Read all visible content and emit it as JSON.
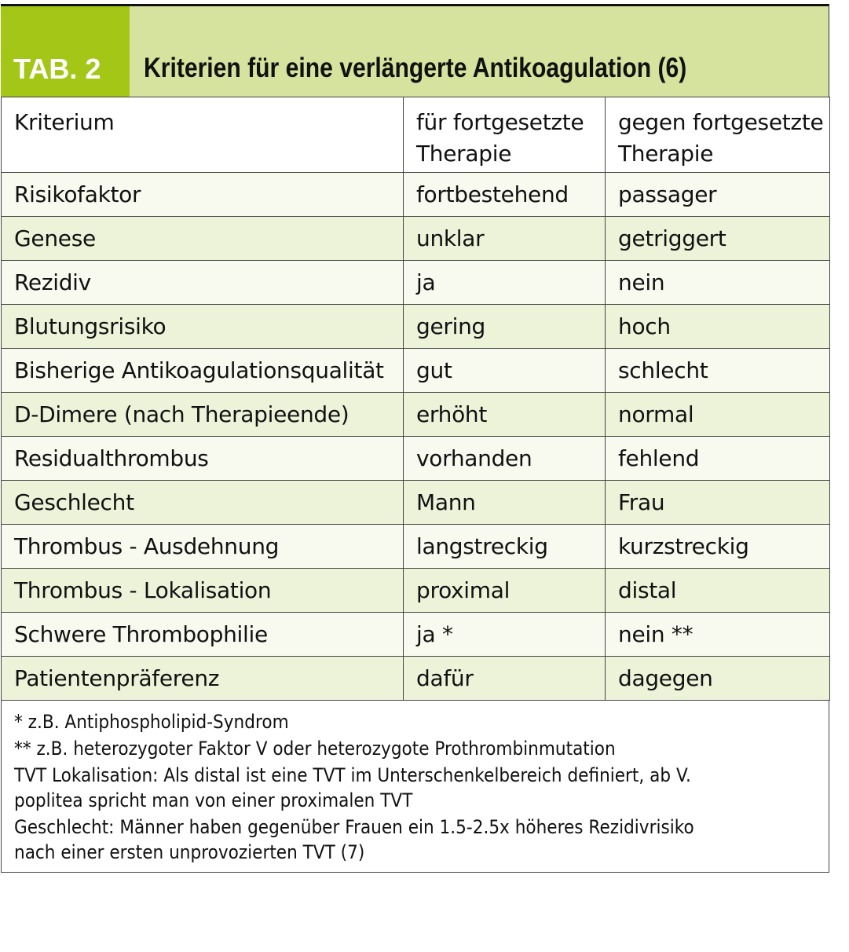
{
  "header": {
    "tab_label": "TAB. 2",
    "title": "Kriterien für eine verlängerte Antikoagulation (6)"
  },
  "colors": {
    "tab_green": "#a3c617",
    "title_green": "#d5e39e",
    "row_light": "#f8faef",
    "row_green": "#ecf3d9"
  },
  "table": {
    "columns": [
      "Kriterium",
      "für fortgesetzte Therapie",
      "gegen fortgesetzte Therapie"
    ],
    "column_lines": [
      [
        "Kriterium",
        ""
      ],
      [
        "für fortgesetzte",
        "Therapie"
      ],
      [
        "gegen fortgesetzte",
        "Therapie"
      ]
    ],
    "rows": [
      [
        "Risikofaktor",
        "fortbestehend",
        "passager"
      ],
      [
        "Genese",
        "unklar",
        "getriggert"
      ],
      [
        "Rezidiv",
        "ja",
        "nein"
      ],
      [
        "Blutungsrisiko",
        "gering",
        "hoch"
      ],
      [
        "Bisherige Antikoagulationsqualität",
        "gut",
        "schlecht"
      ],
      [
        "D-Dimere (nach Therapieende)",
        "erhöht",
        "normal"
      ],
      [
        "Residualthrombus",
        "vorhanden",
        "fehlend"
      ],
      [
        "Geschlecht",
        "Mann",
        "Frau"
      ],
      [
        "Thrombus - Ausdehnung",
        "langstreckig",
        "kurzstreckig"
      ],
      [
        "Thrombus - Lokalisation",
        "proximal",
        "distal"
      ],
      [
        "Schwere Thrombophilie",
        "ja *",
        "nein **"
      ],
      [
        "Patientenpräferenz",
        "dafür",
        "dagegen"
      ]
    ]
  },
  "footnotes": [
    "*  z.B. Antiphospholipid-Syndrom",
    "** z.B. heterozygoter Faktor V oder heterozygote Prothrombinmutation",
    "TVT Lokalisation: Als distal ist eine TVT im Unterschenkelbereich definiert, ab V.",
    "poplitea spricht man von einer proximalen TVT",
    "Geschlecht: Männer haben gegenüber Frauen ein 1.5-2.5x höheres Rezidivrisiko",
    "nach einer ersten unprovozierten TVT (7)"
  ]
}
